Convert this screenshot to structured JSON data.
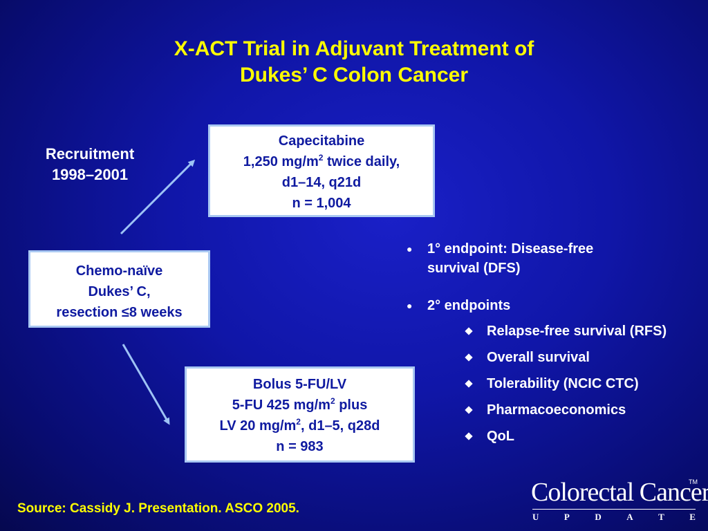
{
  "title": {
    "line1": "X-ACT Trial in Adjuvant Treatment of",
    "line2": "Dukes’ C Colon Cancer"
  },
  "recruitment": {
    "label": "Recruitment",
    "years": "1998–2001"
  },
  "capecitabine_box": {
    "line1": "Capecitabine",
    "line2_pre": "1,250 mg/m",
    "line2_sup": "2",
    "line2_post": " twice daily,",
    "line3": "d1–14, q21d",
    "line4": "n = 1,004"
  },
  "chemo_box": {
    "line1": "Chemo-naïve",
    "line2": "Dukes’ C,",
    "line3": "resection ≤8 weeks"
  },
  "bolus_box": {
    "line1": "Bolus 5-FU/LV",
    "line2_pre": "5-FU 425 mg/m",
    "line2_sup": "2",
    "line2_post": " plus",
    "line3_pre": "LV 20 mg/m",
    "line3_sup": "2",
    "line3_post": ", d1–5, q28d",
    "line4": "n = 983"
  },
  "endpoints": {
    "bullet_glyph": "●",
    "primary": {
      "line1": "1° endpoint: Disease-free",
      "line2": "survival (DFS)"
    },
    "secondary": {
      "label": "2° endpoints",
      "items": [
        "Relapse-free survival (RFS)",
        "Overall survival",
        "Tolerability (NCIC CTC)",
        "Pharmacoeconomics",
        "QoL"
      ]
    }
  },
  "source": "Source: Cassidy J. Presentation. ASCO 2005.",
  "logo": {
    "name": "Colorectal Cancer",
    "tm": "TM",
    "subtitle": [
      "U",
      "P",
      "D",
      "A",
      "T",
      "E"
    ]
  },
  "colors": {
    "title": "#ffff00",
    "box_text": "#0f1aa0",
    "box_border": "#a9c8f2",
    "arrow": "#9ec3f5",
    "background": "#1016a8"
  }
}
